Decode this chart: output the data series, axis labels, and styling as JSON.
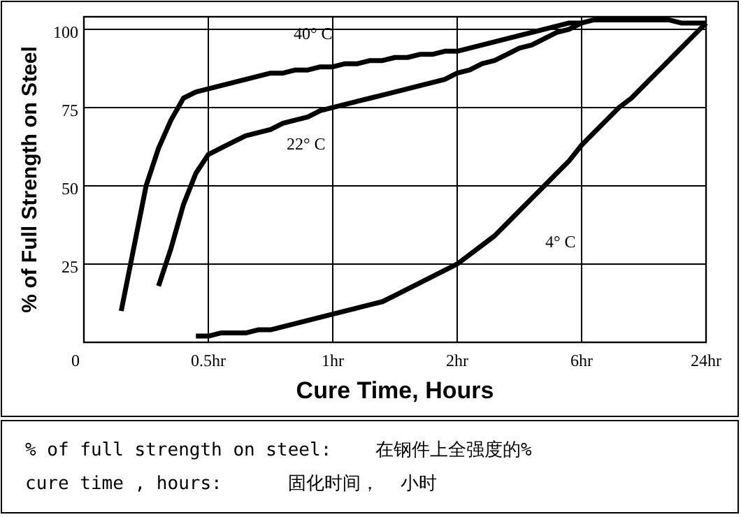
{
  "chart_data": {
    "type": "line",
    "xlabel": "Cure Time, Hours",
    "ylabel": "% of Full Strength on Steel",
    "categories": [
      "0",
      null,
      null,
      null,
      null,
      null,
      null,
      null,
      null,
      null,
      "0.5hr",
      null,
      null,
      null,
      null,
      null,
      null,
      null,
      null,
      null,
      "1hr",
      null,
      null,
      null,
      null,
      null,
      null,
      null,
      null,
      null,
      "2hr",
      null,
      null,
      null,
      null,
      null,
      null,
      null,
      null,
      null,
      "6hr",
      null,
      null,
      null,
      null,
      null,
      null,
      null,
      null,
      null,
      "24hr"
    ],
    "ylim": [
      0,
      104
    ],
    "yticks": [
      25,
      50,
      75,
      100
    ],
    "grid": true,
    "line_style": "solid",
    "marker": "none",
    "series": [
      {
        "name": "40° C",
        "color": "#000000",
        "values": [
          null,
          null,
          null,
          10,
          30,
          50,
          62,
          71,
          78,
          80,
          81,
          82,
          83,
          84,
          85,
          86,
          86,
          87,
          87,
          88,
          88,
          89,
          89,
          90,
          90,
          91,
          91,
          92,
          92,
          93,
          93,
          94,
          95,
          96,
          97,
          98,
          99,
          100,
          101,
          102,
          102,
          103,
          103,
          103,
          103,
          103,
          103,
          103,
          102,
          102,
          102
        ]
      },
      {
        "name": "22° C",
        "color": "#000000",
        "values": [
          null,
          null,
          null,
          null,
          null,
          null,
          18,
          30,
          44,
          54,
          60,
          62,
          64,
          66,
          67,
          68,
          70,
          71,
          72,
          74,
          75,
          76,
          77,
          78,
          79,
          80,
          81,
          82,
          83,
          84,
          86,
          87,
          89,
          90,
          92,
          94,
          95,
          97,
          99,
          100,
          102,
          null,
          null,
          null,
          null,
          null,
          null,
          null,
          null,
          null,
          null
        ]
      },
      {
        "name": "4° C",
        "color": "#000000",
        "values": [
          null,
          null,
          null,
          null,
          null,
          null,
          null,
          null,
          null,
          2,
          2,
          3,
          3,
          3,
          4,
          4,
          5,
          6,
          7,
          8,
          9,
          10,
          11,
          12,
          13,
          15,
          17,
          19,
          21,
          23,
          25,
          28,
          31,
          34,
          38,
          42,
          46,
          50,
          54,
          58,
          63,
          67,
          71,
          75,
          78,
          82,
          86,
          90,
          94,
          98,
          102
        ]
      }
    ],
    "annotations": [
      "% of full strength on steel:    在钢件上全强度的%",
      "cure time , hours:      固化时间，  小时"
    ]
  }
}
